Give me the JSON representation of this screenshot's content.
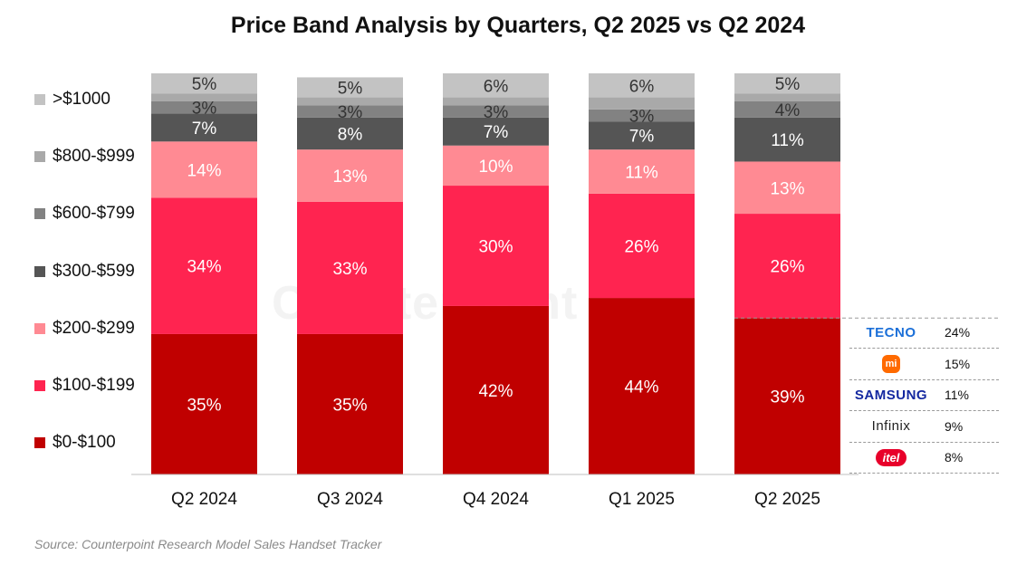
{
  "title": "Price Band Analysis by Quarters, Q2 2025 vs Q2 2024",
  "source": "Source: Counterpoint Research Model Sales Handset Tracker",
  "watermark": "Counterpoint",
  "chart_data": {
    "type": "bar",
    "stacked": true,
    "percent": true,
    "title": "Price Band Analysis by Quarters, Q2 2025 vs Q2 2024",
    "categories": [
      "Q2 2024",
      "Q3 2024",
      "Q4 2024",
      "Q1 2025",
      "Q2 2025"
    ],
    "series": [
      {
        "name": "$0-$100",
        "color": "#c00000",
        "values": [
          35,
          35,
          42,
          44,
          39
        ],
        "labels": [
          "35%",
          "35%",
          "42%",
          "44%",
          "39%"
        ]
      },
      {
        "name": "$100-$199",
        "color": "#ff2450",
        "values": [
          34,
          33,
          30,
          26,
          26
        ],
        "labels": [
          "34%",
          "33%",
          "30%",
          "26%",
          "26%"
        ]
      },
      {
        "name": "$200-$299",
        "color": "#ff8a93",
        "values": [
          14,
          13,
          10,
          11,
          13
        ],
        "labels": [
          "14%",
          "13%",
          "10%",
          "11%",
          "13%"
        ]
      },
      {
        "name": "$300-$599",
        "color": "#555555",
        "values": [
          7,
          8,
          7,
          7,
          11
        ],
        "labels": [
          "7%",
          "8%",
          "7%",
          "7%",
          "11%"
        ]
      },
      {
        "name": "$600-$799",
        "color": "#828282",
        "values": [
          3,
          3,
          3,
          3,
          4
        ],
        "labels": [
          "3%",
          "3%",
          "3%",
          "3%",
          "4%"
        ]
      },
      {
        "name": "$800-$999",
        "color": "#a9a9a9",
        "values": [
          2,
          2,
          2,
          3,
          2
        ],
        "labels": [
          "",
          "",
          "",
          "",
          ""
        ]
      },
      {
        "name": ">$1000",
        "color": "#c3c3c3",
        "values": [
          5,
          5,
          6,
          6,
          5
        ],
        "labels": [
          "5%",
          "5%",
          "6%",
          "6%",
          "5%"
        ]
      }
    ],
    "ylim": [
      0,
      100
    ],
    "grid": false,
    "legend": "left",
    "legend_order": [
      ">$1000",
      "$800-$999",
      "$600-$799",
      "$300-$599",
      "$200-$299",
      "$100-$199",
      "$0-$100"
    ]
  },
  "brand_breakdown": [
    {
      "brand": "TECNO",
      "share": "24%",
      "logo": "tecno-logo",
      "color": "#1b6fd8"
    },
    {
      "brand": "mi",
      "share": "15%",
      "logo": "xiaomi-logo",
      "color": "#ff6a00"
    },
    {
      "brand": "SAMSUNG",
      "share": "11%",
      "logo": "samsung-logo",
      "color": "#1428a0"
    },
    {
      "brand": "Infinix",
      "share": "9%",
      "logo": "infinix-logo",
      "color": "#222222"
    },
    {
      "brand": "itel",
      "share": "8%",
      "logo": "itel-logo",
      "color": "#e8002a"
    }
  ]
}
